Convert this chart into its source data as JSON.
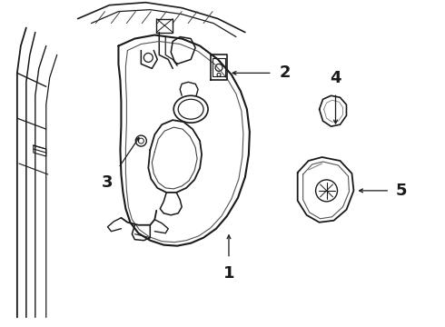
{
  "background_color": "#ffffff",
  "line_color": "#1a1a1a",
  "label_color": "#000000",
  "figure_width": 4.9,
  "figure_height": 3.6,
  "dpi": 100,
  "font_size_labels": 13,
  "line_width": 1.0
}
